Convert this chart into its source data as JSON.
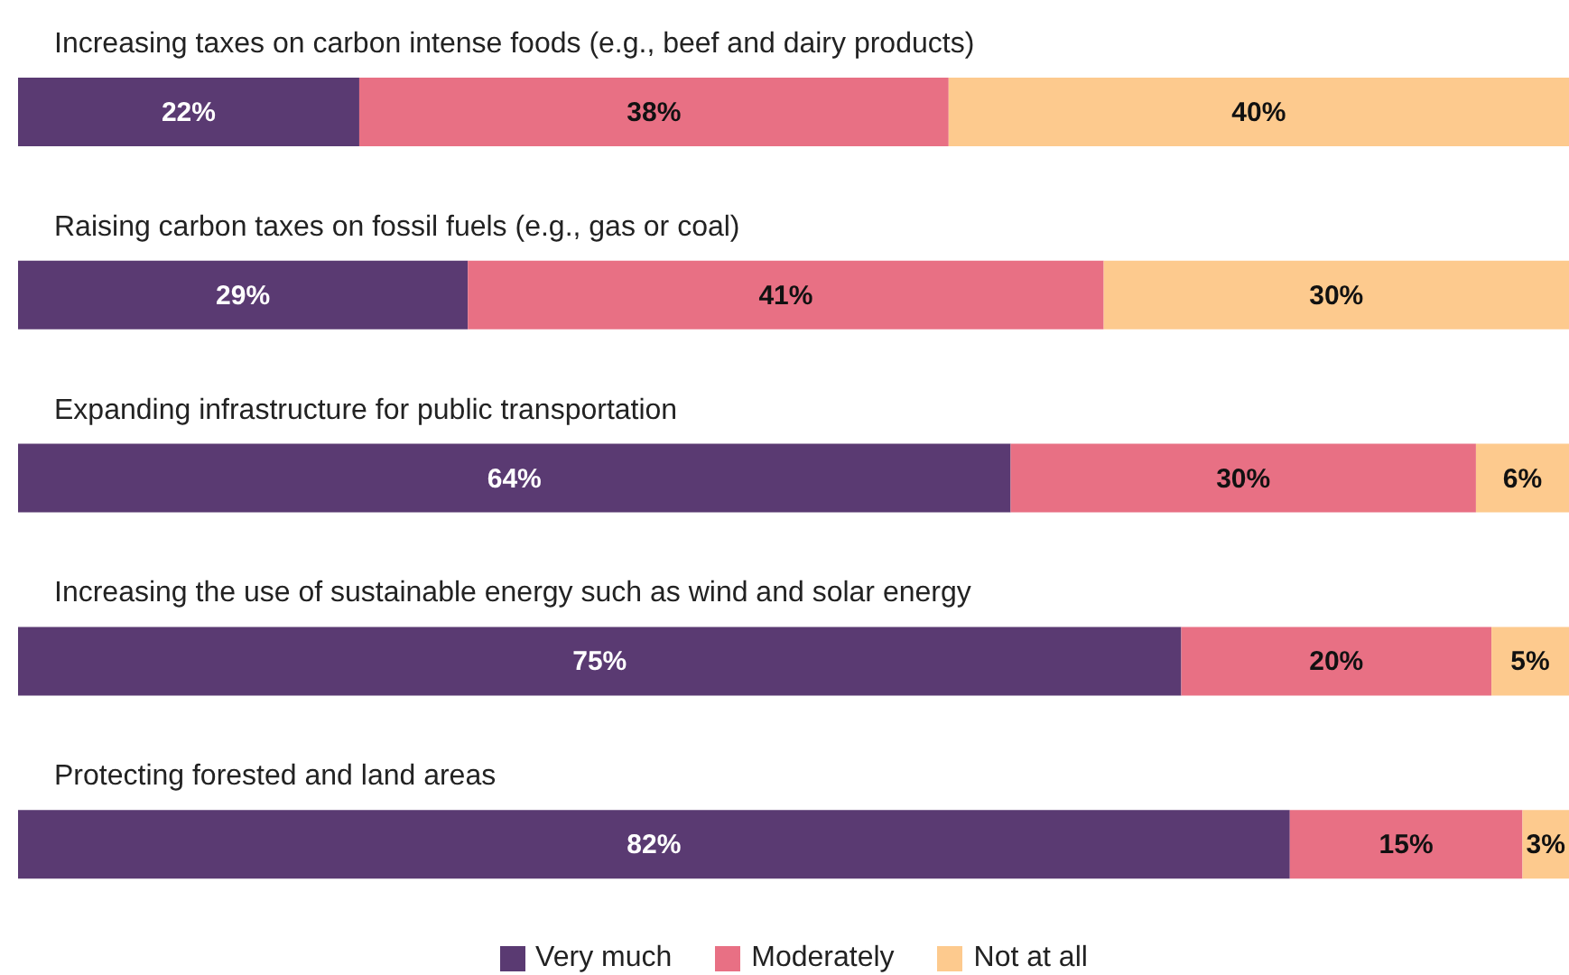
{
  "chart_data": {
    "type": "bar",
    "orientation": "horizontal",
    "stacked": true,
    "categories": [
      "Increasing taxes on carbon intense foods (e.g., beef and dairy products)",
      "Raising carbon taxes on fossil fuels (e.g., gas or coal)",
      "Expanding infrastructure for public transportation",
      "Increasing the use of sustainable energy such as wind and solar energy",
      "Protecting forested and land areas"
    ],
    "series": [
      {
        "name": "Very much",
        "color": "#5a3a72",
        "values": [
          22,
          29,
          64,
          75,
          82
        ],
        "value_labels": [
          "22%",
          "29%",
          "64%",
          "75%",
          "82%"
        ]
      },
      {
        "name": "Moderately",
        "color": "#e87084",
        "values": [
          38,
          41,
          30,
          20,
          15
        ],
        "value_labels": [
          "38%",
          "41%",
          "30%",
          "20%",
          "15%"
        ]
      },
      {
        "name": "Not at all",
        "color": "#fdca8e",
        "values": [
          40,
          30,
          6,
          5,
          3
        ],
        "value_labels": [
          "40%",
          "30%",
          "6%",
          "5%",
          "3%"
        ]
      }
    ],
    "xlim": [
      0,
      100
    ],
    "tick_labels": false,
    "grid": false,
    "legend": "bottom"
  }
}
